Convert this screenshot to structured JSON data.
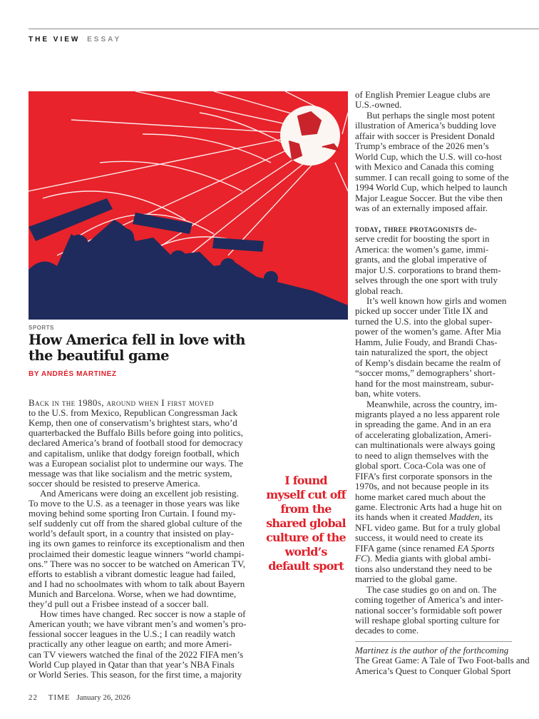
{
  "section": {
    "primary": "THE VIEW",
    "secondary": "ESSAY"
  },
  "hero_image": {
    "description_icon": "soccer-ball-net-fans-illustration",
    "colors": {
      "background": "#e8232b",
      "silhouettes": "#1f2b5c",
      "net": "#ffffff"
    }
  },
  "article": {
    "kicker": "SPORTS",
    "headline": "How America fell in love with the beautiful game",
    "byline": "BY ANDRÉS MARTINEZ",
    "accent_color": "#e0202a"
  },
  "left_column": [
    {
      "text": "Back in the 1980s, around when I first moved",
      "lead": true
    },
    {
      "text": "to the U.S. from Mexico, Republican Congressman Jack"
    },
    {
      "text": "Kemp, then one of conservatism’s brightest stars, who’d"
    },
    {
      "text": "quarterbacked the Buffalo Bills before going into politics,"
    },
    {
      "text": "declared America’s brand of football stood for democracy"
    },
    {
      "text": "and capitalism, unlike that dodgy foreign football, which"
    },
    {
      "text": "was a European socialist plot to undermine our ways. The"
    },
    {
      "text": "message was that like socialism and the metric system,"
    },
    {
      "text": "soccer should be resisted to preserve America."
    },
    {
      "text": "And Americans were doing an excellent job resisting.",
      "indent": true
    },
    {
      "text": "To move to the U.S. as a teenager in those years was like"
    },
    {
      "text": "moving behind some sporting Iron Curtain. I found my-"
    },
    {
      "text": "self suddenly cut off from the shared global culture of the"
    },
    {
      "text": "world’s default sport, in a country that insisted on play-"
    },
    {
      "text": "ing its own games to reinforce its exceptionalism and then"
    },
    {
      "text": "proclaimed their domestic league winners “world champi-"
    },
    {
      "text": "ons.” There was no soccer to be watched on American TV,"
    },
    {
      "text": "efforts to establish a vibrant domestic league had failed,"
    },
    {
      "text": "and I had no schoolmates with whom to talk about Bayern"
    },
    {
      "text": "Munich and Barcelona. Worse, when we had downtime,"
    },
    {
      "text": "they’d pull out a Frisbee instead of a soccer ball."
    },
    {
      "text": "How times have changed. Rec soccer is now a staple of",
      "indent": true
    },
    {
      "text": "American youth; we have vibrant men’s and women’s pro-"
    },
    {
      "text": "fessional soccer leagues in the U.S.; I can readily watch"
    },
    {
      "text": "practically any other league on earth; and more Ameri-"
    },
    {
      "text": "can TV viewers watched the final of the 2022 FIFA men’s"
    },
    {
      "text": "World Cup played in Qatar than that year’s NBA Finals"
    },
    {
      "text": "or World Series. This season, for the first time, a majority"
    }
  ],
  "right_column": [
    {
      "text": "of English Premier League clubs are"
    },
    {
      "text": "U.S.-owned."
    },
    {
      "text": "But perhaps the single most potent",
      "indent": true
    },
    {
      "text": "illustration of America’s budding love"
    },
    {
      "text": "affair with soccer is President Donald"
    },
    {
      "text": "Trump’s embrace of the 2026 men’s"
    },
    {
      "text": "World Cup, which the U.S. will co-host"
    },
    {
      "text": "with Mexico and Canada this coming"
    },
    {
      "text": "summer. I can recall going to some of the"
    },
    {
      "text": "1994 World Cup, which helped to launch"
    },
    {
      "text": "Major League Soccer. But the vibe then"
    },
    {
      "text": "was of an externally imposed affair."
    },
    {
      "text": ""
    },
    {
      "segments": [
        {
          "t": "today, three protagonists",
          "sc": true
        },
        {
          "t": " de-"
        }
      ]
    },
    {
      "text": "serve credit for boosting the sport in"
    },
    {
      "text": "America: the women’s game, immi-"
    },
    {
      "text": "grants, and the global imperative of"
    },
    {
      "text": "major U.S. corporations to brand them-"
    },
    {
      "text": "selves through the one sport with truly"
    },
    {
      "text": "global reach."
    },
    {
      "text": "It’s well known how girls and women",
      "indent": true
    },
    {
      "text": "picked up soccer under Title IX and"
    },
    {
      "text": "turned the U.S. into the global super-"
    },
    {
      "text": "power of the women’s game. After Mia"
    },
    {
      "text": "Hamm, Julie Foudy, and Brandi Chas-"
    },
    {
      "text": "tain naturalized the sport, the object"
    },
    {
      "text": "of Kemp’s disdain became the realm of"
    },
    {
      "text": "“soccer moms,” demographers’ short-"
    },
    {
      "text": "hand for the most mainstream, subur-"
    },
    {
      "text": "ban, white voters."
    },
    {
      "text": "Meanwhile, across the country, im-",
      "indent": true
    },
    {
      "text": "migrants played a no less apparent role"
    },
    {
      "text": "in spreading the game. And in an era"
    },
    {
      "text": "of accelerating globalization, Ameri-"
    },
    {
      "text": "can multinationals were always going"
    },
    {
      "text": "to need to align themselves with the"
    },
    {
      "text": "global sport. Coca-Cola was one of"
    },
    {
      "text": "FIFA’s first corporate sponsors in the"
    },
    {
      "text": "1970s, and not because people in its"
    },
    {
      "text": "home market cared much about the"
    },
    {
      "text": "game. Electronic Arts had a huge hit on"
    },
    {
      "segments": [
        {
          "t": "its hands when it created "
        },
        {
          "t": "Madden,",
          "i": true
        },
        {
          "t": " its"
        }
      ]
    },
    {
      "text": "NFL video game. But for a truly global"
    },
    {
      "text": "success, it would need to create its"
    },
    {
      "segments": [
        {
          "t": "FIFA game (since renamed "
        },
        {
          "t": "EA Sports",
          "i": true
        }
      ]
    },
    {
      "segments": [
        {
          "t": "FC",
          "i": true
        },
        {
          "t": "). Media giants with global ambi-"
        }
      ]
    },
    {
      "text": "tions also understand they need to be"
    },
    {
      "text": "married to the global game."
    },
    {
      "text": "The case studies go on and on. The",
      "indent": true
    },
    {
      "text": "coming together of America’s and inter-"
    },
    {
      "text": "national soccer’s formidable soft power"
    },
    {
      "text": "will reshape global sporting culture for"
    },
    {
      "text": "decades to come."
    }
  ],
  "pull_quote": "I found myself cut off from the shared global culture of the world’s default sport",
  "author_bio": {
    "intro": "Martinez is the author of the forthcoming",
    "book": "The Great Game: A Tale of Two Foot-balls and America’s Quest to Conquer Global Sport"
  },
  "footer": {
    "page_number": "22",
    "magazine": "TIME",
    "date": "January 26, 2026"
  }
}
